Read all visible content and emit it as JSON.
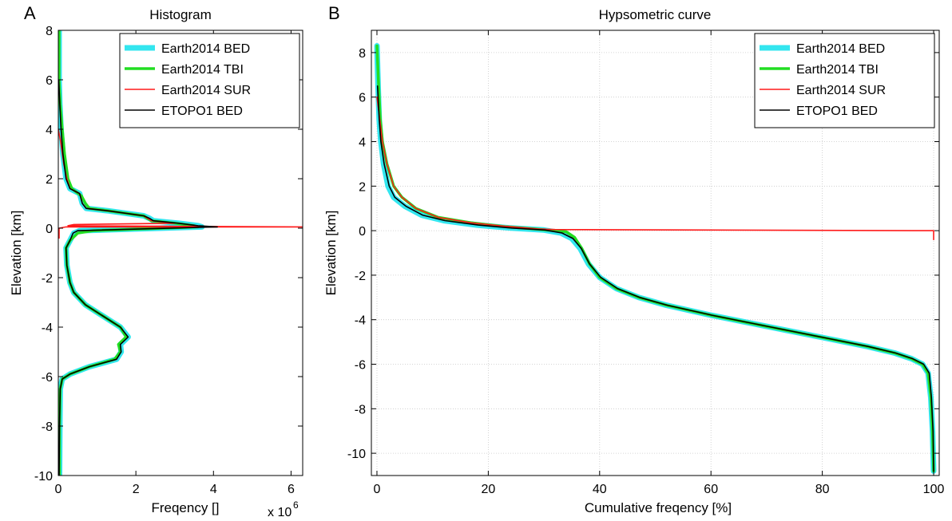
{
  "colors": {
    "Earth2014 BED": "#33e6ef",
    "Earth2014 TBI": "#22dd22",
    "Earth2014 SUR": "#ff1a1a",
    "ETOPO1 BED": "#000000"
  },
  "chart_data": [
    {
      "type": "line",
      "panel_label": "A",
      "title": "Histogram",
      "xlabel": "Freqency []",
      "x_multiplier_label": "x 10",
      "x_multiplier_exp": "6",
      "ylabel": "Elevation [km]",
      "xlim": [
        0,
        6.3
      ],
      "ylim": [
        -10,
        8
      ],
      "xticks": [
        0,
        2,
        4,
        6
      ],
      "yticks": [
        -10,
        -8,
        -6,
        -4,
        -2,
        0,
        2,
        4,
        6,
        8
      ],
      "grid": false,
      "legend_position": "top-right",
      "series": [
        {
          "name": "Earth2014 BED",
          "points": [
            [
              0.02,
              8
            ],
            [
              0.02,
              6
            ],
            [
              0.04,
              5
            ],
            [
              0.07,
              4
            ],
            [
              0.12,
              3
            ],
            [
              0.2,
              2
            ],
            [
              0.3,
              1.6
            ],
            [
              0.55,
              1.4
            ],
            [
              0.62,
              1.0
            ],
            [
              0.72,
              0.8
            ],
            [
              1.3,
              0.7
            ],
            [
              2.2,
              0.5
            ],
            [
              2.35,
              0.4
            ],
            [
              2.45,
              0.3
            ],
            [
              3.1,
              0.2
            ],
            [
              3.6,
              0.1
            ],
            [
              3.7,
              0.05
            ],
            [
              0.55,
              -0.1
            ],
            [
              0.4,
              -0.2
            ],
            [
              0.3,
              -0.5
            ],
            [
              0.2,
              -0.8
            ],
            [
              0.22,
              -1.5
            ],
            [
              0.3,
              -2.2
            ],
            [
              0.4,
              -2.6
            ],
            [
              0.7,
              -3.1
            ],
            [
              1.1,
              -3.5
            ],
            [
              1.4,
              -3.8
            ],
            [
              1.6,
              -4.0
            ],
            [
              1.8,
              -4.4
            ],
            [
              1.6,
              -4.7
            ],
            [
              1.62,
              -5.0
            ],
            [
              1.5,
              -5.3
            ],
            [
              0.8,
              -5.6
            ],
            [
              0.3,
              -5.9
            ],
            [
              0.1,
              -6.1
            ],
            [
              0.05,
              -6.5
            ],
            [
              0.04,
              -8
            ],
            [
              0.03,
              -10
            ]
          ]
        },
        {
          "name": "Earth2014 TBI",
          "points": [
            [
              0.02,
              8
            ],
            [
              0.02,
              6
            ],
            [
              0.05,
              5
            ],
            [
              0.1,
              4
            ],
            [
              0.16,
              3
            ],
            [
              0.25,
              2
            ],
            [
              0.35,
              1.6
            ],
            [
              0.6,
              1.3
            ],
            [
              0.7,
              1.0
            ],
            [
              0.8,
              0.8
            ],
            [
              1.3,
              0.7
            ],
            [
              2.2,
              0.5
            ],
            [
              2.3,
              0.4
            ],
            [
              2.4,
              0.3
            ],
            [
              3.0,
              0.2
            ],
            [
              3.5,
              0.1
            ],
            [
              3.6,
              0.05
            ],
            [
              0.9,
              -0.1
            ],
            [
              0.5,
              -0.2
            ],
            [
              0.3,
              -0.5
            ],
            [
              0.2,
              -0.8
            ],
            [
              0.22,
              -1.5
            ],
            [
              0.3,
              -2.2
            ],
            [
              0.4,
              -2.6
            ],
            [
              0.7,
              -3.1
            ],
            [
              1.1,
              -3.5
            ],
            [
              1.4,
              -3.8
            ],
            [
              1.6,
              -4.0
            ],
            [
              1.75,
              -4.4
            ],
            [
              1.55,
              -4.7
            ],
            [
              1.6,
              -5.0
            ],
            [
              1.45,
              -5.3
            ],
            [
              0.8,
              -5.6
            ],
            [
              0.3,
              -5.9
            ],
            [
              0.1,
              -6.1
            ],
            [
              0.05,
              -6.5
            ],
            [
              0.03,
              -8
            ],
            [
              0.03,
              -10
            ]
          ]
        },
        {
          "name": "Earth2014 SUR",
          "points": [
            [
              0,
              4.0
            ],
            [
              0.06,
              3.5
            ],
            [
              0.14,
              2.6
            ],
            [
              0.22,
              2.0
            ],
            [
              0.3,
              1.6
            ],
            [
              0.55,
              1.4
            ],
            [
              0.62,
              1.0
            ],
            [
              0.72,
              0.8
            ],
            [
              1.3,
              0.7
            ],
            [
              2.2,
              0.5
            ],
            [
              2.3,
              0.4
            ],
            [
              2.4,
              0.3
            ],
            [
              3.0,
              0.2
            ],
            [
              0.4,
              0.15
            ],
            [
              0.25,
              0.1
            ],
            [
              6.3,
              0.05
            ],
            [
              0.2,
              0.05
            ],
            [
              0.02,
              0.0
            ],
            [
              0.02,
              -0.4
            ]
          ]
        },
        {
          "name": "ETOPO1 BED",
          "points": [
            [
              0.01,
              6
            ],
            [
              0.04,
              5
            ],
            [
              0.07,
              4
            ],
            [
              0.12,
              3
            ],
            [
              0.2,
              2
            ],
            [
              0.3,
              1.6
            ],
            [
              0.55,
              1.4
            ],
            [
              0.62,
              1.0
            ],
            [
              0.72,
              0.8
            ],
            [
              1.3,
              0.7
            ],
            [
              2.2,
              0.5
            ],
            [
              2.35,
              0.4
            ],
            [
              2.45,
              0.3
            ],
            [
              3.1,
              0.2
            ],
            [
              3.6,
              0.1
            ],
            [
              4.1,
              0.05
            ],
            [
              0.5,
              -0.1
            ],
            [
              0.38,
              -0.2
            ],
            [
              0.3,
              -0.5
            ],
            [
              0.2,
              -0.8
            ],
            [
              0.22,
              -1.5
            ],
            [
              0.3,
              -2.2
            ],
            [
              0.4,
              -2.6
            ],
            [
              0.7,
              -3.1
            ],
            [
              1.1,
              -3.5
            ],
            [
              1.4,
              -3.8
            ],
            [
              1.6,
              -4.0
            ],
            [
              1.8,
              -4.4
            ],
            [
              1.6,
              -4.7
            ],
            [
              1.62,
              -5.0
            ],
            [
              1.5,
              -5.3
            ],
            [
              0.8,
              -5.6
            ],
            [
              0.3,
              -5.9
            ],
            [
              0.1,
              -6.1
            ],
            [
              0.05,
              -6.5
            ],
            [
              0.03,
              -8
            ],
            [
              0.02,
              -10
            ]
          ]
        }
      ]
    },
    {
      "type": "line",
      "panel_label": "B",
      "title": "Hypsometric curve",
      "xlabel": "Cumulative freqency [%]",
      "ylabel": "Elevation [km]",
      "xlim": [
        -1,
        101
      ],
      "ylim": [
        -11,
        9
      ],
      "xticks": [
        0,
        20,
        40,
        60,
        80,
        100
      ],
      "yticks": [
        -10,
        -8,
        -6,
        -4,
        -2,
        0,
        2,
        4,
        6,
        8
      ],
      "grid": true,
      "legend_position": "top-right",
      "series": [
        {
          "name": "Earth2014 BED",
          "points": [
            [
              0.0,
              8.3
            ],
            [
              0.2,
              6.5
            ],
            [
              0.4,
              5.0
            ],
            [
              0.7,
              4.0
            ],
            [
              1.2,
              3.0
            ],
            [
              2.0,
              2.0
            ],
            [
              3.0,
              1.5
            ],
            [
              5.0,
              1.1
            ],
            [
              8.0,
              0.7
            ],
            [
              12.0,
              0.45
            ],
            [
              18.0,
              0.25
            ],
            [
              24.0,
              0.12
            ],
            [
              30.0,
              0.03
            ],
            [
              33.0,
              -0.1
            ],
            [
              35.0,
              -0.35
            ],
            [
              36.5,
              -0.8
            ],
            [
              38.0,
              -1.5
            ],
            [
              40.0,
              -2.1
            ],
            [
              43.0,
              -2.6
            ],
            [
              47.0,
              -3.0
            ],
            [
              52.0,
              -3.35
            ],
            [
              60.0,
              -3.8
            ],
            [
              70.0,
              -4.3
            ],
            [
              80.0,
              -4.8
            ],
            [
              88.0,
              -5.2
            ],
            [
              93.0,
              -5.5
            ],
            [
              96.0,
              -5.75
            ],
            [
              98.0,
              -6.0
            ],
            [
              99.0,
              -6.4
            ],
            [
              99.5,
              -7.5
            ],
            [
              99.8,
              -9.0
            ],
            [
              100.0,
              -10.8
            ]
          ]
        },
        {
          "name": "Earth2014 TBI",
          "points": [
            [
              0.0,
              8.3
            ],
            [
              0.3,
              6.5
            ],
            [
              0.6,
              5.0
            ],
            [
              1.0,
              4.0
            ],
            [
              1.8,
              3.0
            ],
            [
              3.0,
              2.0
            ],
            [
              4.5,
              1.5
            ],
            [
              7.0,
              1.0
            ],
            [
              11.0,
              0.6
            ],
            [
              17.0,
              0.35
            ],
            [
              23.0,
              0.18
            ],
            [
              29.0,
              0.06
            ],
            [
              34.0,
              -0.05
            ],
            [
              35.5,
              -0.3
            ],
            [
              36.8,
              -0.8
            ],
            [
              38.2,
              -1.5
            ],
            [
              40.0,
              -2.1
            ],
            [
              43.0,
              -2.6
            ],
            [
              47.0,
              -3.0
            ],
            [
              52.0,
              -3.35
            ],
            [
              60.0,
              -3.8
            ],
            [
              70.0,
              -4.3
            ],
            [
              80.0,
              -4.8
            ],
            [
              88.0,
              -5.2
            ],
            [
              93.0,
              -5.5
            ],
            [
              96.0,
              -5.75
            ],
            [
              98.0,
              -6.0
            ],
            [
              99.0,
              -6.4
            ],
            [
              99.5,
              -7.5
            ],
            [
              99.8,
              -9.0
            ],
            [
              100.0,
              -10.8
            ]
          ]
        },
        {
          "name": "Earth2014 SUR",
          "points": [
            [
              0.0,
              6.0
            ],
            [
              0.5,
              5.0
            ],
            [
              1.0,
              4.0
            ],
            [
              1.8,
              3.0
            ],
            [
              3.0,
              2.0
            ],
            [
              4.5,
              1.5
            ],
            [
              7.0,
              1.0
            ],
            [
              11.0,
              0.6
            ],
            [
              17.0,
              0.35
            ],
            [
              23.0,
              0.2
            ],
            [
              29.0,
              0.08
            ],
            [
              32.0,
              0.05
            ],
            [
              100.0,
              0.0
            ],
            [
              100.0,
              -0.4
            ]
          ]
        },
        {
          "name": "ETOPO1 BED",
          "points": [
            [
              0.1,
              6.5
            ],
            [
              0.4,
              5.0
            ],
            [
              0.7,
              4.0
            ],
            [
              1.3,
              3.0
            ],
            [
              2.2,
              2.0
            ],
            [
              3.2,
              1.5
            ],
            [
              5.2,
              1.1
            ],
            [
              8.2,
              0.7
            ],
            [
              12.2,
              0.45
            ],
            [
              18.2,
              0.25
            ],
            [
              24.2,
              0.12
            ],
            [
              30.2,
              0.03
            ],
            [
              33.2,
              -0.1
            ],
            [
              35.2,
              -0.35
            ],
            [
              36.7,
              -0.8
            ],
            [
              38.2,
              -1.5
            ],
            [
              40.2,
              -2.1
            ],
            [
              43.2,
              -2.6
            ],
            [
              47.2,
              -3.0
            ],
            [
              52.2,
              -3.35
            ],
            [
              60.2,
              -3.8
            ],
            [
              70.2,
              -4.3
            ],
            [
              80.2,
              -4.8
            ],
            [
              88.2,
              -5.2
            ],
            [
              93.2,
              -5.5
            ],
            [
              96.2,
              -5.75
            ],
            [
              98.2,
              -6.0
            ],
            [
              99.2,
              -6.4
            ],
            [
              99.6,
              -7.5
            ],
            [
              99.9,
              -9.0
            ],
            [
              100.0,
              -10.8
            ]
          ]
        }
      ]
    }
  ]
}
